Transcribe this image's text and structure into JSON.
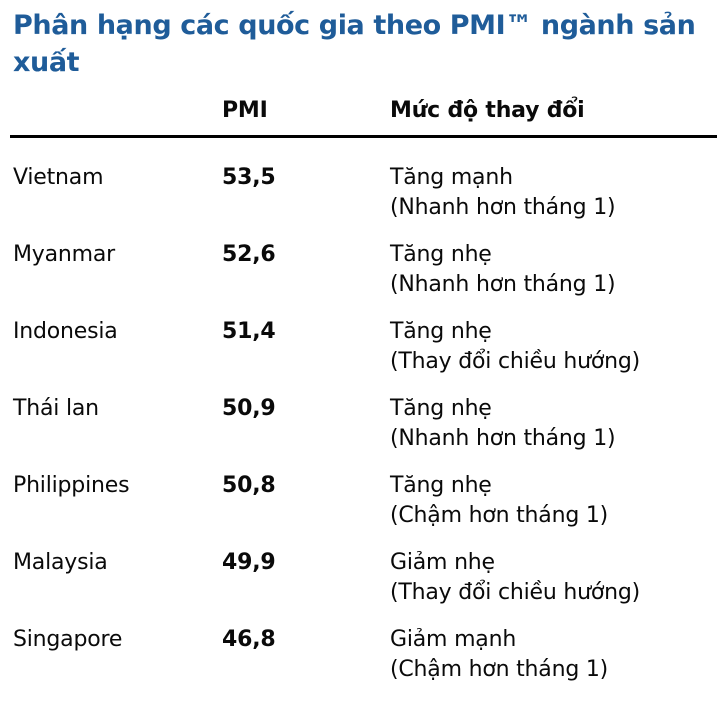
{
  "title": "Phân hạng các quốc gia theo PMI™ ngành sản xuất",
  "colors": {
    "title_blue": "#1F5C99",
    "text": "#0a0a0a",
    "header_rule": "#000000",
    "background": "#ffffff"
  },
  "table": {
    "headers": {
      "country": "",
      "pmi": "PMI",
      "change": "Mức độ thay đổi"
    },
    "rows": [
      {
        "country": "Vietnam",
        "pmi": "53,5",
        "change": "Tăng mạnh",
        "detail": "(Nhanh hơn tháng 1)"
      },
      {
        "country": "Myanmar",
        "pmi": "52,6",
        "change": "Tăng nhẹ",
        "detail": "(Nhanh hơn tháng 1)"
      },
      {
        "country": "Indonesia",
        "pmi": "51,4",
        "change": "Tăng nhẹ",
        "detail": "(Thay đổi chiều hướng)"
      },
      {
        "country": "Thái lan",
        "pmi": "50,9",
        "change": "Tăng nhẹ",
        "detail": "(Nhanh hơn tháng 1)"
      },
      {
        "country": "Philippines",
        "pmi": "50,8",
        "change": "Tăng nhẹ",
        "detail": "(Chậm hơn tháng 1)"
      },
      {
        "country": "Malaysia",
        "pmi": "49,9",
        "change": "Giảm nhẹ",
        "detail": "(Thay đổi chiều hướng)"
      },
      {
        "country": "Singapore",
        "pmi": "46,8",
        "change": "Giảm mạnh",
        "detail": "(Chậm hơn tháng 1)"
      }
    ]
  }
}
